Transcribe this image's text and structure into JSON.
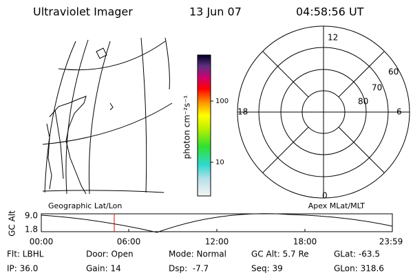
{
  "header": {
    "title": "Ultraviolet Imager",
    "date": "13 Jun 07",
    "time": "04:58:56 UT"
  },
  "colorbar": {
    "label": "photon cm⁻²s⁻¹",
    "ticks": [
      "100",
      "10"
    ]
  },
  "polar": {
    "clock_labels": [
      "12",
      "18",
      "6",
      "0"
    ],
    "lat_labels": [
      "60",
      "70",
      "80"
    ]
  },
  "altitude_panel": {
    "left_label": "Geographic Lat/Lon",
    "right_label": "Apex MLat/MLT",
    "y_label": "GC Alt",
    "y_ticks": [
      "9.0",
      "1.8"
    ],
    "x_ticks": [
      "00:00",
      "06:00",
      "12:00",
      "18:00",
      "23:59"
    ]
  },
  "info": {
    "rows": [
      [
        "Flt: LBHL",
        "Door: Open",
        "Mode: Normal",
        "GC Alt: 5.7 Re",
        "GLat: -63.5"
      ],
      [
        "IP: 36.0",
        "Gain: 14",
        "Dsp:  -7.7",
        "Seq: 39",
        "GLon: 318.6"
      ]
    ]
  }
}
